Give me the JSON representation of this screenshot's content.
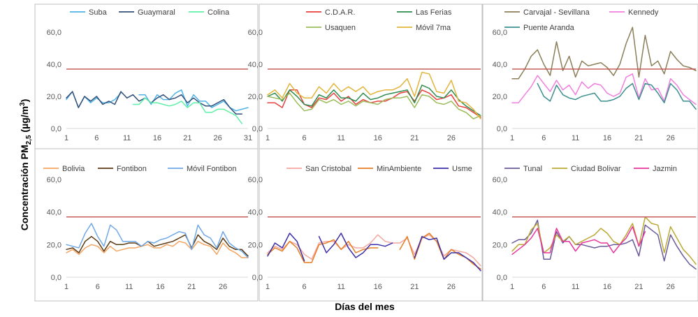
{
  "figure": {
    "ylabel_main": "Concentración PM",
    "ylabel_sub": "2,5",
    "ylabel_unit": " (µg/m",
    "ylabel_sup": "3",
    "ylabel_close": ")",
    "xlabel": "Días del mes",
    "limit_color": "#c0504d"
  },
  "chart_data": [
    {
      "type": "line",
      "ylim": [
        0,
        60
      ],
      "xlim": [
        1,
        31
      ],
      "yticks": [
        "0,0",
        "20,0",
        "40,0",
        "60,0"
      ],
      "xticks": [
        1,
        6,
        11,
        16,
        21,
        26,
        31
      ],
      "limit": 37,
      "series": [
        {
          "name": "Suba",
          "color": "#4fb3e8",
          "values": [
            18,
            23,
            13,
            20,
            16,
            19,
            16,
            16,
            18,
            22,
            null,
            null,
            21,
            21,
            15,
            21,
            18,
            18,
            22,
            24,
            14,
            21,
            17,
            17,
            13,
            15,
            17,
            13,
            11,
            12,
            13
          ]
        },
        {
          "name": "Guaymaral",
          "color": "#33507a",
          "values": [
            19,
            23,
            13,
            20,
            17,
            20,
            15,
            17,
            15,
            23,
            19,
            21,
            17,
            19,
            16,
            19,
            21,
            18,
            19,
            21,
            16,
            19,
            16,
            14,
            14,
            16,
            18,
            13,
            9,
            9,
            null
          ]
        },
        {
          "name": "Colina",
          "color": "#5ef0a8",
          "values": [
            null,
            null,
            null,
            null,
            null,
            null,
            null,
            null,
            null,
            null,
            null,
            15,
            15,
            19,
            16,
            16,
            15,
            14,
            15,
            17,
            13,
            16,
            16,
            10,
            10,
            12,
            12,
            10,
            8,
            3,
            null
          ]
        }
      ]
    },
    {
      "type": "line",
      "ylim": [
        0,
        60
      ],
      "xlim": [
        1,
        30
      ],
      "yticks": [
        "0,0",
        "20,0",
        "40,0",
        "60,0"
      ],
      "xticks": [
        1,
        6,
        11,
        16,
        21,
        26
      ],
      "limit": 37,
      "series": [
        {
          "name": "C.D.A.R.",
          "color": "#e8403c",
          "values": [
            16,
            16,
            13,
            24,
            24,
            15,
            13,
            19,
            18,
            22,
            17,
            20,
            15,
            18,
            16,
            17,
            17,
            19,
            22,
            23,
            17,
            24,
            22,
            18,
            19,
            21,
            14,
            13,
            10,
            7
          ]
        },
        {
          "name": "Las Ferias",
          "color": "#2e8b4d",
          "values": [
            20,
            22,
            17,
            24,
            20,
            15,
            14,
            21,
            19,
            24,
            19,
            19,
            17,
            22,
            18,
            19,
            21,
            22,
            23,
            24,
            16,
            27,
            25,
            20,
            19,
            24,
            18,
            14,
            11,
            8
          ]
        },
        {
          "name": "Usaquen",
          "color": "#9bbb59",
          "values": [
            20,
            19,
            18,
            22,
            16,
            11,
            12,
            18,
            16,
            18,
            15,
            17,
            14,
            17,
            16,
            15,
            18,
            19,
            19,
            20,
            13,
            21,
            20,
            16,
            15,
            17,
            12,
            10,
            6,
            8
          ]
        },
        {
          "name": "Móvil 7ma",
          "color": "#e2b43a",
          "values": [
            21,
            24,
            19,
            28,
            22,
            19,
            19,
            26,
            22,
            28,
            23,
            26,
            23,
            26,
            21,
            23,
            24,
            24,
            26,
            31,
            20,
            35,
            34,
            23,
            22,
            30,
            17,
            16,
            12,
            6
          ]
        }
      ]
    },
    {
      "type": "line",
      "ylim": [
        0,
        60
      ],
      "xlim": [
        1,
        30
      ],
      "yticks": [
        "0,0",
        "20,0",
        "40,0",
        "60,0"
      ],
      "xticks": [
        1,
        6,
        11,
        16,
        21,
        26
      ],
      "limit": 37,
      "series": [
        {
          "name": "Carvajal - Sevillana",
          "color": "#8b7e58",
          "values": [
            31,
            31,
            37,
            45,
            49,
            40,
            33,
            54,
            36,
            45,
            32,
            42,
            39,
            40,
            41,
            38,
            33,
            40,
            53,
            63,
            32,
            58,
            39,
            42,
            34,
            48,
            43,
            39,
            38,
            36
          ]
        },
        {
          "name": "Kennedy",
          "color": "#f07fe0",
          "values": [
            16,
            16,
            21,
            26,
            33,
            28,
            23,
            30,
            24,
            27,
            21,
            29,
            25,
            28,
            27,
            22,
            20,
            22,
            32,
            34,
            19,
            31,
            24,
            25,
            17,
            31,
            27,
            21,
            18,
            15
          ]
        },
        {
          "name": "Puente Aranda",
          "color": "#3e8f8f",
          "values": [
            null,
            null,
            null,
            null,
            28,
            20,
            17,
            27,
            21,
            19,
            18,
            20,
            21,
            22,
            17,
            17,
            18,
            20,
            25,
            28,
            18,
            28,
            27,
            22,
            16,
            28,
            24,
            17,
            17,
            12
          ]
        }
      ]
    },
    {
      "type": "line",
      "ylim": [
        0,
        60
      ],
      "xlim": [
        1,
        30
      ],
      "yticks": [
        "0,0",
        "20,0",
        "40,0",
        "60,0"
      ],
      "xticks": [
        1,
        6,
        11,
        16,
        21,
        26
      ],
      "limit": 37,
      "series": [
        {
          "name": "Bolivia",
          "color": "#f4a460",
          "values": [
            15,
            17,
            14,
            18,
            20,
            19,
            15,
            19,
            16,
            17,
            18,
            18,
            19,
            20,
            18,
            18,
            20,
            19,
            22,
            21,
            17,
            22,
            20,
            19,
            14,
            21,
            17,
            15,
            12,
            12
          ]
        },
        {
          "name": "Fontibon",
          "color": "#5c3a12",
          "values": [
            17,
            18,
            15,
            22,
            25,
            22,
            16,
            22,
            20,
            20,
            21,
            21,
            19,
            22,
            19,
            20,
            21,
            22,
            24,
            26,
            18,
            26,
            22,
            20,
            17,
            24,
            19,
            17,
            17,
            13
          ]
        },
        {
          "name": "Móvil Fontibon",
          "color": "#6fa8e6",
          "values": [
            20,
            19,
            18,
            27,
            33,
            25,
            19,
            32,
            29,
            22,
            22,
            22,
            19,
            22,
            21,
            23,
            24,
            26,
            28,
            27,
            17,
            32,
            26,
            24,
            18,
            28,
            21,
            18,
            16,
            12
          ]
        }
      ]
    },
    {
      "type": "line",
      "ylim": [
        0,
        60
      ],
      "xlim": [
        1,
        30
      ],
      "yticks": [
        "0,0",
        "20,0",
        "40,0",
        "60,0"
      ],
      "xticks": [
        1,
        6,
        11,
        16,
        21,
        26
      ],
      "limit": 37,
      "series": [
        {
          "name": "San Cristobal",
          "color": "#f4a6a0",
          "values": [
            15,
            19,
            17,
            22,
            20,
            14,
            11,
            21,
            22,
            22,
            17,
            20,
            18,
            18,
            21,
            26,
            22,
            21,
            21,
            24,
            14,
            24,
            26,
            22,
            13,
            17,
            16,
            15,
            12,
            7
          ]
        },
        {
          "name": "MinAmbiente",
          "color": "#e67e22",
          "values": [
            14,
            18,
            16,
            22,
            18,
            9,
            9,
            20,
            21,
            23,
            17,
            22,
            15,
            17,
            18,
            18,
            null,
            null,
            17,
            25,
            11,
            24,
            27,
            22,
            11,
            17,
            14,
            12,
            8,
            5
          ]
        },
        {
          "name": "Usme",
          "color": "#3b2fa8",
          "values": [
            13,
            21,
            18,
            27,
            22,
            10,
            null,
            25,
            15,
            20,
            27,
            18,
            12,
            15,
            20,
            20,
            19,
            21,
            null,
            null,
            12,
            25,
            23,
            24,
            11,
            15,
            15,
            12,
            9,
            4
          ]
        }
      ]
    },
    {
      "type": "line",
      "ylim": [
        0,
        60
      ],
      "xlim": [
        1,
        30
      ],
      "yticks": [
        "0,0",
        "20,0",
        "40,0",
        "60,0"
      ],
      "xticks": [
        1,
        6,
        11,
        16,
        21,
        26
      ],
      "limit": 37,
      "series": [
        {
          "name": "Tunal",
          "color": "#6a5a9a",
          "values": [
            21,
            23,
            23,
            27,
            35,
            11,
            11,
            28,
            21,
            25,
            20,
            20,
            19,
            18,
            19,
            19,
            20,
            20,
            21,
            23,
            13,
            32,
            29,
            26,
            10,
            26,
            19,
            13,
            8,
            5
          ]
        },
        {
          "name": "Ciudad Bolivar",
          "color": "#bca935",
          "values": [
            16,
            20,
            20,
            29,
            33,
            15,
            18,
            26,
            22,
            25,
            20,
            22,
            24,
            26,
            30,
            27,
            22,
            20,
            26,
            33,
            19,
            37,
            33,
            32,
            15,
            31,
            24,
            17,
            13,
            8
          ]
        },
        {
          "name": "Jazmin",
          "color": "#e8349b",
          "values": [
            14,
            17,
            20,
            24,
            30,
            15,
            15,
            30,
            22,
            22,
            16,
            21,
            22,
            23,
            21,
            21,
            15,
            20,
            24,
            31,
            19,
            28,
            null,
            null,
            null,
            null,
            null,
            null,
            null,
            null
          ]
        }
      ]
    }
  ]
}
